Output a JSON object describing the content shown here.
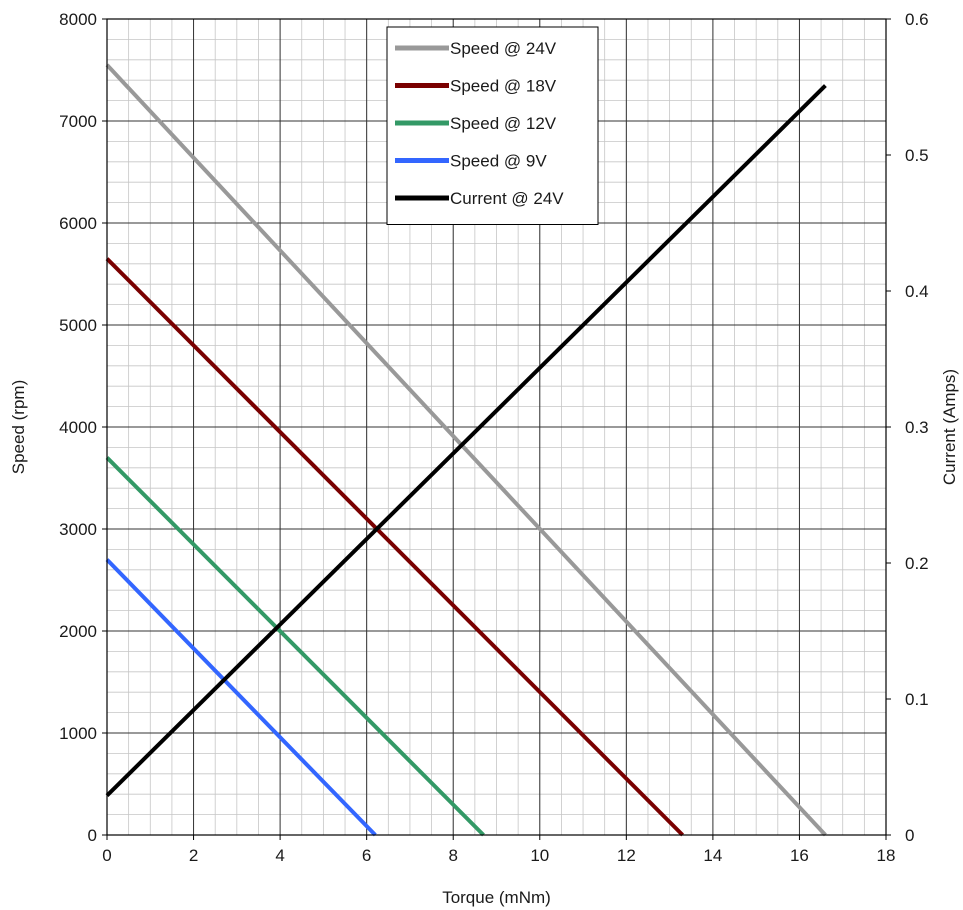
{
  "chart_data": {
    "type": "line",
    "xlabel": "Torque (mNm)",
    "ylabel": "Speed (rpm)",
    "y2label": "Current (Amps)",
    "xlim": [
      0,
      18
    ],
    "ylim": [
      0,
      8000
    ],
    "y2lim": [
      0,
      0.6
    ],
    "x_ticks": [
      "0",
      "2",
      "4",
      "6",
      "8",
      "10",
      "12",
      "14",
      "16",
      "18"
    ],
    "y_ticks": [
      "0",
      "1000",
      "2000",
      "3000",
      "4000",
      "5000",
      "6000",
      "7000",
      "8000"
    ],
    "y2_ticks": [
      "0",
      "0.1",
      "0.2",
      "0.3",
      "0.4",
      "0.5",
      "0.6"
    ],
    "grid": true,
    "legend_position": "top-center",
    "series": [
      {
        "name": "Speed @ 24V",
        "axis": "left",
        "color": "#999999",
        "x": [
          0,
          16.6
        ],
        "y": [
          7550,
          0
        ]
      },
      {
        "name": "Speed @ 18V",
        "axis": "left",
        "color": "#7a0000",
        "x": [
          0,
          13.3
        ],
        "y": [
          5650,
          0
        ]
      },
      {
        "name": "Speed @ 12V",
        "axis": "left",
        "color": "#339966",
        "x": [
          0,
          8.7
        ],
        "y": [
          3700,
          0
        ]
      },
      {
        "name": "Speed @ 9V",
        "axis": "left",
        "color": "#3366ff",
        "x": [
          0,
          6.2
        ],
        "y": [
          2700,
          0
        ]
      },
      {
        "name": "Current @ 24V",
        "axis": "right",
        "color": "#000000",
        "x": [
          0,
          16.6
        ],
        "y": [
          0.029,
          0.551
        ]
      }
    ]
  }
}
